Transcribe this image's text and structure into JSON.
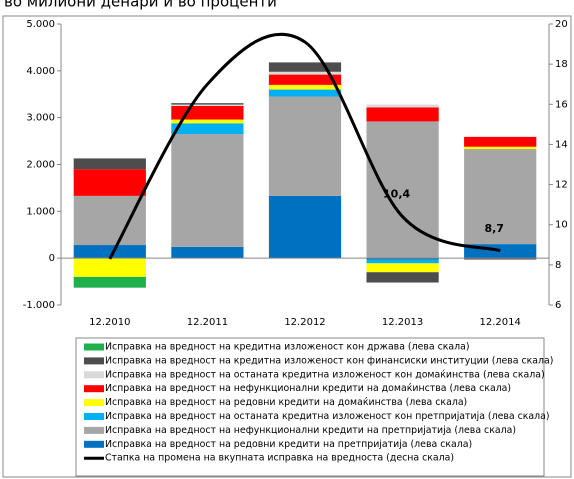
{
  "chart_data": {
    "type": "stacked-bar-line",
    "title": "во милиони денари и во проценти",
    "categories": [
      "12.2010",
      "12.2011",
      "12.2012",
      "12.2013",
      "12.2014"
    ],
    "series": [
      {
        "name": "Исправка на вредност на кредитна изложеност кон држава (лева скала)",
        "color": "#1fb04b",
        "values": [
          -230,
          0,
          0,
          0,
          0
        ]
      },
      {
        "name": "Исправка на вредност на кредитна изложеност кон финансиски институции (лева скала)",
        "color": "#4d4d4d",
        "values": [
          230,
          30,
          200,
          -220,
          -30
        ]
      },
      {
        "name": "Исправка на вредност на останата кредитна изложеност кон домаќинства (лева скала)",
        "color": "#d9d9d9",
        "values": [
          0,
          30,
          60,
          60,
          0
        ]
      },
      {
        "name": "Исправка на вредност на нефункционални кредити на домаќинства (лева скала)",
        "color": "#ff0000",
        "values": [
          570,
          290,
          220,
          300,
          210
        ]
      },
      {
        "name": "Исправка на вредност на редовни кредити на домаќинства (лева скала)",
        "color": "#ffff00",
        "values": [
          -400,
          80,
          100,
          -190,
          50
        ]
      },
      {
        "name": "Исправка на вредност на останата кредитна изложеност кон претпријатија (лева скала)",
        "color": "#00b0f0",
        "values": [
          0,
          230,
          150,
          -80,
          0
        ]
      },
      {
        "name": "Исправка на вредност на нефункционални кредити на претпријатија (лева скала)",
        "color": "#a6a6a6",
        "values": [
          1050,
          2410,
          2120,
          2920,
          2030
        ]
      },
      {
        "name": "Исправка на вредност на редовни кредити на претпријатија (лева скала)",
        "color": "#0070c0",
        "values": [
          280,
          240,
          1330,
          -30,
          300
        ]
      },
      {
        "name": "Стапка на промена на вкупната исправка на вредноста (десна скала)",
        "color": "#000000",
        "axis": "y2",
        "values": [
          8.3,
          17,
          19.1,
          10.4,
          8.7
        ],
        "value_labels": [
          null,
          null,
          null,
          "10,4",
          "8,7"
        ]
      }
    ],
    "ylim": [
      -1000,
      5000
    ],
    "yticks": [
      {
        "value": -1000,
        "label": "-1.000"
      },
      0,
      {
        "value": 1000,
        "label": "1.000"
      },
      {
        "value": 2000,
        "label": "2.000"
      },
      {
        "value": 3000,
        "label": "3.000"
      },
      {
        "value": 4000,
        "label": "4.000"
      },
      {
        "value": 5000,
        "label": "5.000"
      }
    ],
    "y2lim": [
      6,
      20
    ],
    "y2ticks": [
      6,
      8,
      10,
      12,
      14,
      16,
      18,
      20
    ]
  }
}
